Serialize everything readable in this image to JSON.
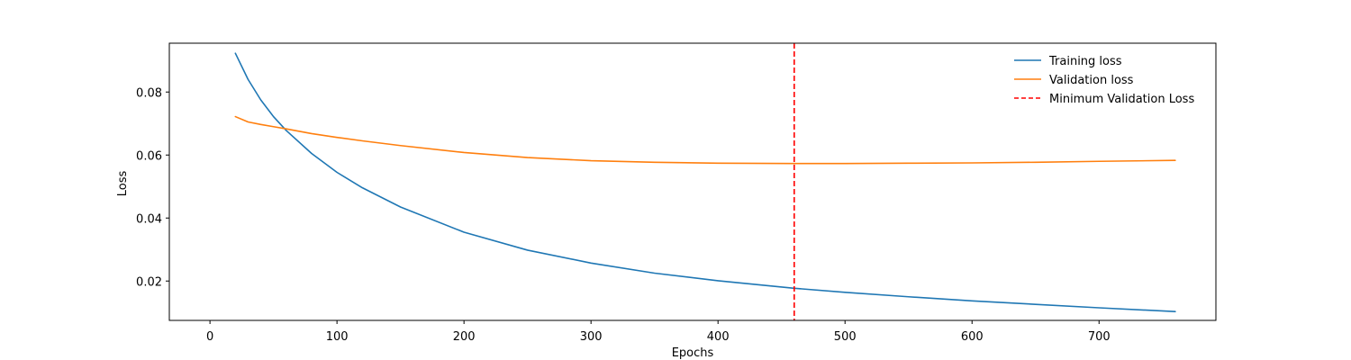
{
  "chart_data": {
    "type": "line",
    "title": "",
    "xlabel": "Epochs",
    "ylabel": "Loss",
    "xlim": [
      -32,
      792
    ],
    "ylim": [
      0.0075,
      0.0955
    ],
    "x_ticks": [
      0,
      100,
      200,
      300,
      400,
      500,
      600,
      700
    ],
    "y_ticks": [
      0.02,
      0.04,
      0.06,
      0.08
    ],
    "y_tick_labels": [
      "0.02",
      "0.04",
      "0.06",
      "0.08"
    ],
    "grid": false,
    "legend_position": "top-right",
    "x": [
      20,
      30,
      40,
      50,
      60,
      80,
      100,
      120,
      150,
      200,
      250,
      300,
      350,
      400,
      460,
      500,
      550,
      600,
      650,
      700,
      760
    ],
    "series": [
      {
        "name": "Training loss",
        "color": "#1f77b4",
        "style": "solid",
        "values": [
          0.0923,
          0.084,
          0.0775,
          0.0722,
          0.0678,
          0.0605,
          0.0545,
          0.0496,
          0.0435,
          0.0355,
          0.0298,
          0.0257,
          0.0225,
          0.0201,
          0.0177,
          0.0164,
          0.015,
          0.0137,
          0.0126,
          0.0115,
          0.0103
        ]
      },
      {
        "name": "Validation loss",
        "color": "#ff7f0e",
        "style": "solid",
        "values": [
          0.0722,
          0.0705,
          0.0697,
          0.069,
          0.0683,
          0.0668,
          0.0656,
          0.0645,
          0.063,
          0.0608,
          0.0592,
          0.0582,
          0.0577,
          0.0574,
          0.0573,
          0.0573,
          0.0574,
          0.0575,
          0.0577,
          0.058,
          0.0583
        ]
      }
    ],
    "vlines": [
      {
        "name": "Minimum Validation Loss",
        "x": 460,
        "color": "#ff0000",
        "style": "dashed"
      }
    ]
  }
}
